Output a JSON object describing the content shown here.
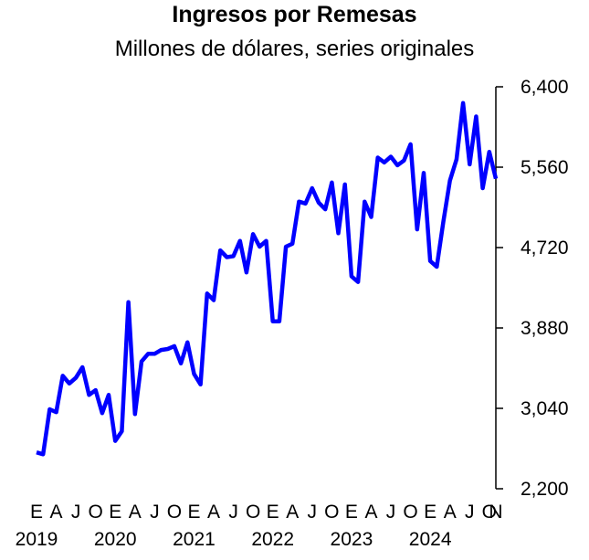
{
  "chart_data": {
    "type": "line",
    "title": "Ingresos por Remesas",
    "subtitle": "Millones de dólares, series originales",
    "xlabel": "",
    "ylabel": "",
    "ylim": [
      2200,
      6400
    ],
    "y_ticks": [
      2200,
      3040,
      3880,
      4720,
      5560,
      6400
    ],
    "y_tick_labels": [
      "2,200",
      "3,040",
      "3,880",
      "4,720",
      "5,560",
      "6,400"
    ],
    "x_month_labels": [
      "E",
      "A",
      "J",
      "O",
      "E",
      "A",
      "J",
      "O",
      "E",
      "A",
      "J",
      "O",
      "E",
      "A",
      "J",
      "O",
      "E",
      "A",
      "J",
      "O",
      "E",
      "A",
      "J",
      "O",
      "N"
    ],
    "x_month_index": [
      0,
      3,
      6,
      9,
      12,
      15,
      18,
      21,
      24,
      27,
      30,
      33,
      36,
      39,
      42,
      45,
      48,
      51,
      54,
      57,
      60,
      63,
      66,
      69,
      70
    ],
    "x_year_labels": [
      "2019",
      "2020",
      "2021",
      "2022",
      "2023",
      "2024"
    ],
    "x_year_index": [
      0,
      12,
      24,
      36,
      48,
      60
    ],
    "color": "#0000ff",
    "grid": false,
    "axis_position": "right",
    "series": [
      {
        "values": [
          2580,
          2560,
          3030,
          3000,
          3380,
          3300,
          3360,
          3470,
          3180,
          3230,
          2990,
          3180,
          2700,
          2800,
          4150,
          2980,
          3530,
          3610,
          3610,
          3650,
          3660,
          3690,
          3510,
          3730,
          3400,
          3290,
          4240,
          4170,
          4690,
          4620,
          4630,
          4790,
          4460,
          4860,
          4730,
          4790,
          3950,
          3950,
          4730,
          4760,
          5200,
          5180,
          5340,
          5190,
          5120,
          5400,
          4870,
          5380,
          4420,
          4360,
          5200,
          5040,
          5660,
          5610,
          5670,
          5580,
          5630,
          5800,
          4910,
          5500,
          4580,
          4520,
          4990,
          5420,
          5640,
          6230,
          5590,
          6090,
          5340,
          5720,
          5440
        ]
      }
    ]
  }
}
